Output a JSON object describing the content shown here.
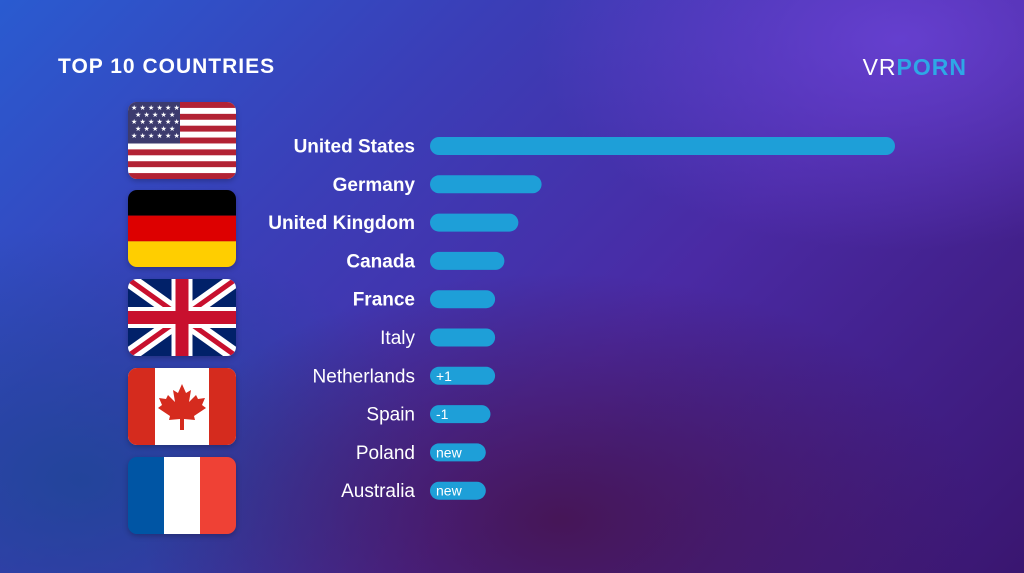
{
  "header": {
    "title": "TOP 10 COUNTRIES",
    "logo_left": "VR",
    "logo_right": "PORN"
  },
  "flags": [
    {
      "icon": "us-flag-icon"
    },
    {
      "icon": "germany-flag-icon"
    },
    {
      "icon": "uk-flag-icon"
    },
    {
      "icon": "canada-flag-icon"
    },
    {
      "icon": "france-flag-icon"
    }
  ],
  "colors": {
    "bar": "#1e9fd8",
    "label": "#ffffff",
    "canada_red": "#d52b1e",
    "germany_red": "#dd0000",
    "germany_gold": "#ffce00"
  },
  "chart_data": {
    "type": "bar",
    "orientation": "horizontal",
    "title": "TOP 10 COUNTRIES",
    "categories": [
      "United States",
      "Germany",
      "United Kingdom",
      "Canada",
      "France",
      "Italy",
      "Netherlands",
      "Spain",
      "Poland",
      "Australia"
    ],
    "values": [
      100,
      24,
      19,
      16,
      14,
      14,
      14,
      13,
      12,
      12
    ],
    "bold": [
      true,
      true,
      true,
      true,
      true,
      false,
      false,
      false,
      false,
      false
    ],
    "bar_labels": [
      "",
      "",
      "",
      "",
      "",
      "",
      "+1",
      "-1",
      "new",
      "new"
    ],
    "xlim": [
      0,
      100
    ],
    "grid": false,
    "legend": "none"
  }
}
